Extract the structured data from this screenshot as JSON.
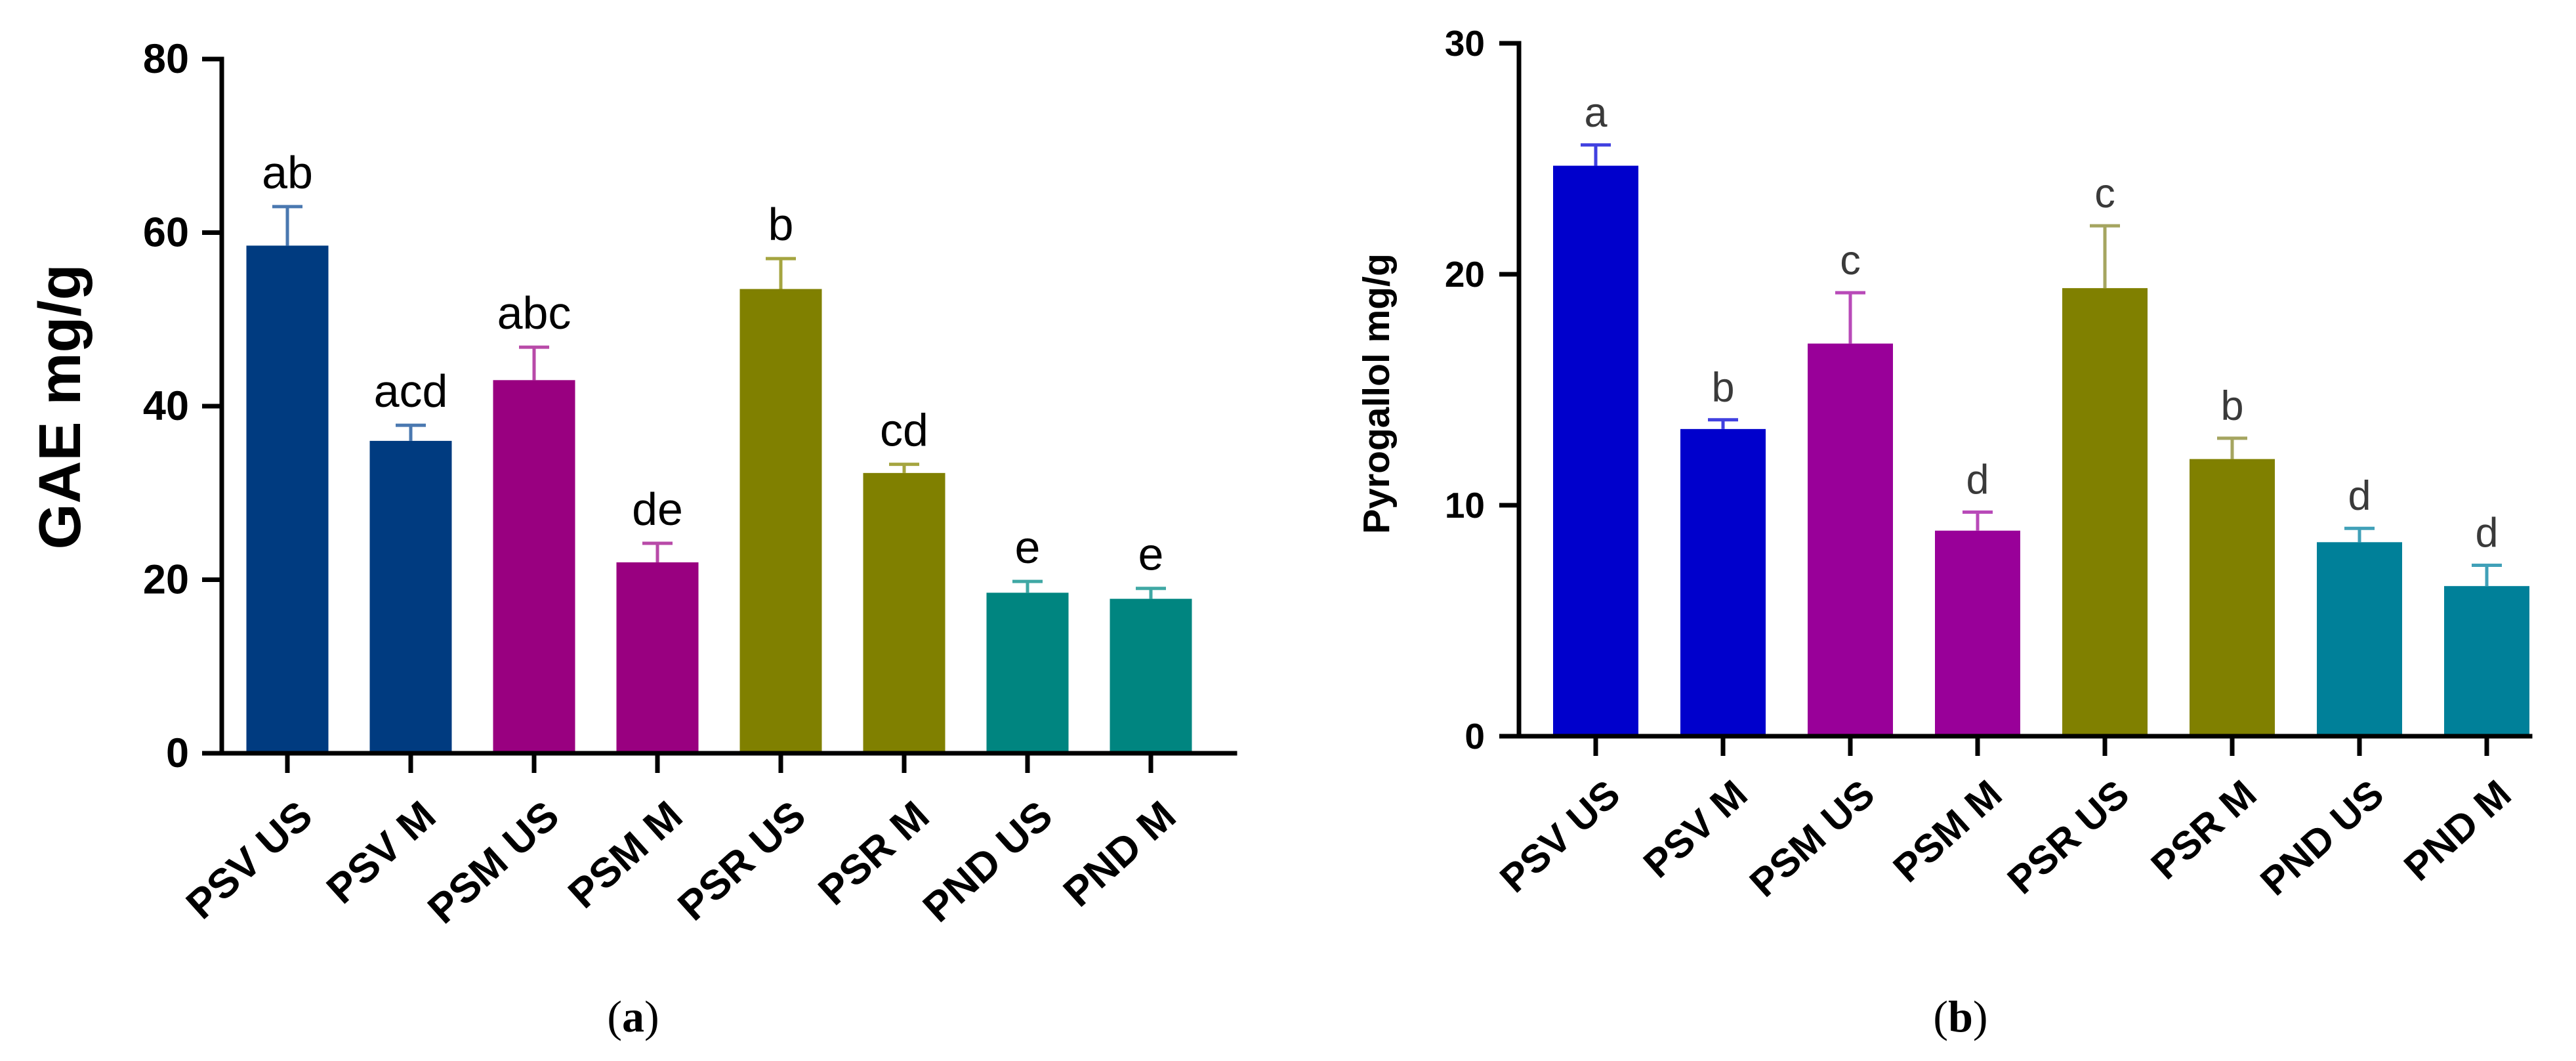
{
  "chart_data": [
    {
      "type": "bar",
      "panel": "a",
      "title": "",
      "xlabel": "",
      "ylabel": "GAE mg/g",
      "ylim": [
        0,
        80
      ],
      "yticks": [
        0,
        20,
        40,
        60,
        80
      ],
      "categories": [
        "PSV US",
        "PSV M",
        "PSM US",
        "PSM M",
        "PSR US",
        "PSR M",
        "PND US",
        "PND M"
      ],
      "values": [
        58.5,
        36.0,
        43.0,
        22.0,
        53.5,
        32.3,
        18.5,
        17.8
      ],
      "errors": [
        4.5,
        1.8,
        3.8,
        2.2,
        3.5,
        1.0,
        1.3,
        1.2
      ],
      "letters": [
        "ab",
        "acd",
        "abc",
        "de",
        "b",
        "cd",
        "e",
        "e"
      ],
      "colors": [
        "#003b80",
        "#003b80",
        "#990080",
        "#990080",
        "#808000",
        "#808000",
        "#008580",
        "#008580"
      ],
      "error_colors": [
        "#4a78b0",
        "#4a78b0",
        "#b84aa8",
        "#b84aa8",
        "#a5a540",
        "#a5a540",
        "#3fa8a4",
        "#3fa8a4"
      ]
    },
    {
      "type": "bar",
      "panel": "b",
      "title": "",
      "xlabel": "",
      "ylabel": "Pyrogallol mg/g",
      "ylim": [
        0,
        30
      ],
      "yticks": [
        0,
        10,
        20,
        30
      ],
      "categories": [
        "PSV US",
        "PSV M",
        "PSM US",
        "PSM M",
        "PSR US",
        "PSR M",
        "PND US",
        "PND M"
      ],
      "values": [
        24.7,
        13.3,
        17.0,
        8.9,
        19.4,
        12.0,
        8.4,
        6.5
      ],
      "errors": [
        0.9,
        0.4,
        2.2,
        0.8,
        2.7,
        0.9,
        0.6,
        0.9
      ],
      "letters": [
        "a",
        "b",
        "c",
        "d",
        "c",
        "b",
        "d",
        "d"
      ],
      "colors": [
        "#0000cc",
        "#0000cc",
        "#990099",
        "#990099",
        "#808000",
        "#808000",
        "#008099",
        "#008099"
      ],
      "error_colors": [
        "#4040e0",
        "#4040e0",
        "#b84ab8",
        "#b84ab8",
        "#a5a560",
        "#a5a560",
        "#40a0b8",
        "#40a0b8"
      ]
    }
  ],
  "panel_labels": [
    {
      "open": "(",
      "letter": "a",
      "close": ")"
    },
    {
      "open": "(",
      "letter": "b",
      "close": ")"
    }
  ]
}
